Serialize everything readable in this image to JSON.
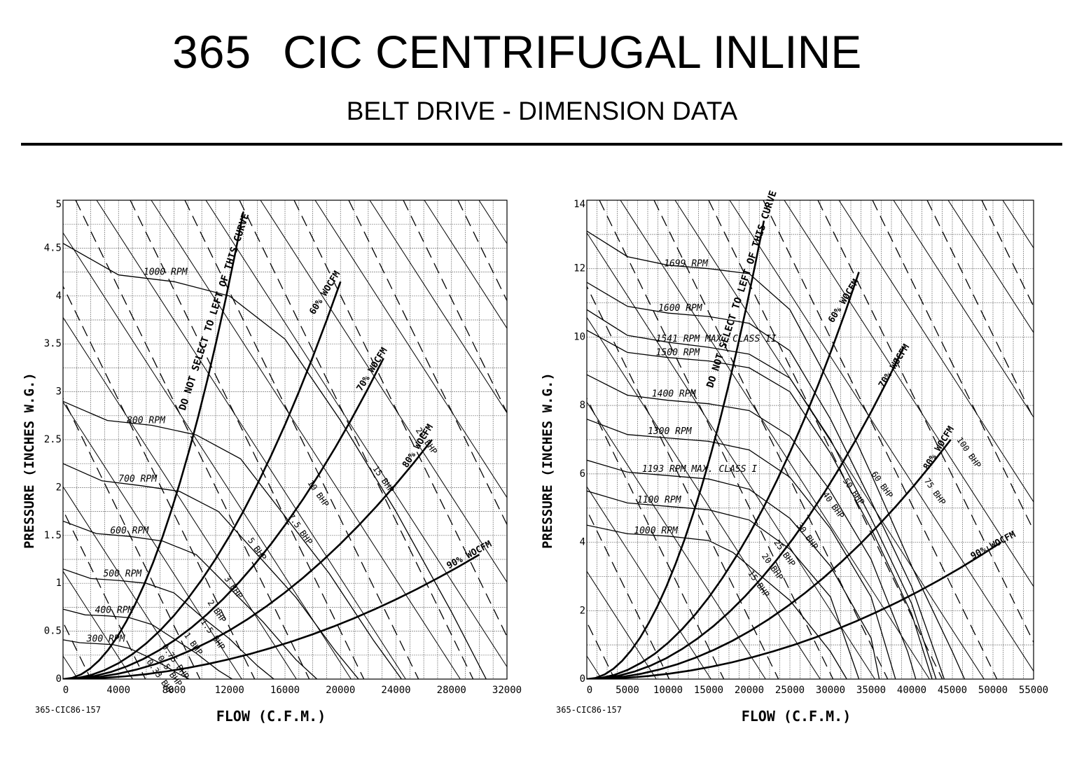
{
  "header": {
    "model": "365",
    "title": "CIC CENTRIFUGAL INLINE",
    "subtitle": "BELT DRIVE - DIMENSION DATA"
  },
  "chart_data": [
    {
      "type": "line",
      "drawing_code": "365-CIC86-157",
      "xlabel": "FLOW (C.F.M.)",
      "ylabel": "PRESSURE (INCHES W.G.)",
      "xlim": [
        0,
        32000
      ],
      "ylim": [
        0,
        5
      ],
      "x_ticks": [
        0,
        4000,
        8000,
        12000,
        16000,
        20000,
        24000,
        28000,
        32000
      ],
      "x_tick_labels": [
        "0",
        "4000",
        "8000",
        "12000",
        "16000",
        "20000",
        "24000",
        "28000",
        "32000"
      ],
      "y_ticks": [
        0,
        0.5,
        1,
        1.5,
        2,
        2.5,
        3,
        3.5,
        4,
        4.5,
        5
      ],
      "y_tick_labels": [
        "0",
        "0.5",
        "1",
        "1.5",
        "2",
        "2.5",
        "3",
        "3.5",
        "4",
        "4.5",
        "5"
      ],
      "grid": true,
      "rpm_curves": [
        {
          "label": "1000 RPM",
          "label_at": [
            5800,
            4.2
          ],
          "points": [
            [
              0,
              4.55
            ],
            [
              4000,
              4.22
            ],
            [
              8000,
              4.15
            ],
            [
              12000,
              4.0
            ],
            [
              16000,
              3.55
            ],
            [
              20000,
              2.7
            ],
            [
              24000,
              1.75
            ],
            [
              28000,
              0.7
            ],
            [
              30500,
              0
            ]
          ]
        },
        {
          "label": "800 RPM",
          "label_at": [
            4600,
            2.65
          ],
          "points": [
            [
              0,
              2.9
            ],
            [
              3200,
              2.7
            ],
            [
              6400,
              2.65
            ],
            [
              9600,
              2.55
            ],
            [
              12800,
              2.3
            ],
            [
              16000,
              1.7
            ],
            [
              19200,
              1.1
            ],
            [
              22400,
              0.4
            ],
            [
              24400,
              0
            ]
          ]
        },
        {
          "label": "700 RPM",
          "label_at": [
            4000,
            2.04
          ],
          "points": [
            [
              0,
              2.25
            ],
            [
              2800,
              2.07
            ],
            [
              5600,
              2.02
            ],
            [
              8400,
              1.96
            ],
            [
              11200,
              1.75
            ],
            [
              14000,
              1.3
            ],
            [
              16800,
              0.85
            ],
            [
              19600,
              0.3
            ],
            [
              21300,
              0
            ]
          ]
        },
        {
          "label": "600 RPM",
          "label_at": [
            3400,
            1.5
          ],
          "points": [
            [
              0,
              1.65
            ],
            [
              2400,
              1.52
            ],
            [
              4800,
              1.49
            ],
            [
              7200,
              1.44
            ],
            [
              9600,
              1.3
            ],
            [
              12000,
              0.95
            ],
            [
              14400,
              0.6
            ],
            [
              16800,
              0.2
            ],
            [
              18300,
              0
            ]
          ]
        },
        {
          "label": "500 RPM",
          "label_at": [
            2900,
            1.05
          ],
          "points": [
            [
              0,
              1.15
            ],
            [
              2000,
              1.05
            ],
            [
              4000,
              1.03
            ],
            [
              6000,
              1.0
            ],
            [
              8000,
              0.9
            ],
            [
              10000,
              0.65
            ],
            [
              12000,
              0.42
            ],
            [
              14000,
              0.14
            ],
            [
              15200,
              0
            ]
          ]
        },
        {
          "label": "400 RPM",
          "label_at": [
            2300,
            0.67
          ],
          "points": [
            [
              0,
              0.73
            ],
            [
              1600,
              0.67
            ],
            [
              3200,
              0.66
            ],
            [
              4800,
              0.64
            ],
            [
              6400,
              0.57
            ],
            [
              8000,
              0.42
            ],
            [
              9600,
              0.27
            ],
            [
              11200,
              0.09
            ],
            [
              12200,
              0
            ]
          ]
        },
        {
          "label": "300 RPM",
          "label_at": [
            1700,
            0.37
          ],
          "points": [
            [
              0,
              0.41
            ],
            [
              1200,
              0.38
            ],
            [
              2400,
              0.37
            ],
            [
              3600,
              0.36
            ],
            [
              4800,
              0.32
            ],
            [
              6000,
              0.24
            ],
            [
              7200,
              0.15
            ],
            [
              8400,
              0.05
            ],
            [
              9100,
              0
            ]
          ]
        }
      ],
      "bhp_curves": [
        {
          "label": "20 BHP",
          "label_at": [
            25400,
            2.6
          ]
        },
        {
          "label": "15 BHP",
          "label_at": [
            22300,
            2.2
          ]
        },
        {
          "label": "10 BHP",
          "label_at": [
            17600,
            2.05
          ]
        },
        {
          "label": "7.5 BHP",
          "label_at": [
            16200,
            1.7
          ]
        },
        {
          "label": "5 BHP",
          "label_at": [
            13300,
            1.45
          ]
        },
        {
          "label": "3 BHP",
          "label_at": [
            11600,
            1.05
          ]
        },
        {
          "label": "2 BHP",
          "label_at": [
            10400,
            0.8
          ]
        },
        {
          "label": "1.5 BHP",
          "label_at": [
            9900,
            0.6
          ]
        },
        {
          "label": "1 BHP",
          "label_at": [
            8700,
            0.46
          ]
        },
        {
          "label": "0.75 BHP",
          "label_at": [
            7100,
            0.34
          ]
        },
        {
          "label": "0.5 BHP",
          "label_at": [
            6800,
            0.22
          ]
        },
        {
          "label": "0.33 BHP",
          "label_at": [
            6000,
            0.18
          ]
        }
      ],
      "system_curves": [
        {
          "label": "DO NOT SELECT TO LEFT OF THIS CURVE",
          "end": [
            13000,
            4.88
          ],
          "label_at": [
            8800,
            2.8
          ]
        },
        {
          "label": "60% WOCFM",
          "end": [
            20000,
            4.15
          ],
          "label_at": [
            18100,
            3.8
          ]
        },
        {
          "label": "70% WOCFM",
          "end": [
            23100,
            3.35
          ],
          "label_at": [
            21500,
            3.0
          ]
        },
        {
          "label": "80% WOCFM",
          "end": [
            26600,
            2.5
          ],
          "label_at": [
            24800,
            2.2
          ]
        },
        {
          "label": "90% WOCFM",
          "end": [
            30000,
            1.3
          ],
          "label_at": [
            27800,
            1.15
          ]
        }
      ]
    },
    {
      "type": "line",
      "drawing_code": "365-CIC86-157",
      "xlabel": "FLOW (C.F.M.)",
      "ylabel": "PRESSURE (INCHES W.G.)",
      "xlim": [
        0,
        55000
      ],
      "ylim": [
        0,
        14
      ],
      "x_ticks": [
        0,
        5000,
        10000,
        15000,
        20000,
        25000,
        30000,
        35000,
        40000,
        45000,
        50000,
        55000
      ],
      "x_tick_labels": [
        "0",
        "5000",
        "10000",
        "15000",
        "20000",
        "25000",
        "30000",
        "35000",
        "40000",
        "45000",
        "50000",
        "55000"
      ],
      "y_ticks": [
        0,
        2,
        4,
        6,
        8,
        10,
        12,
        14
      ],
      "y_tick_labels": [
        "0",
        "2",
        "4",
        "6",
        "8",
        "10",
        "12",
        "14"
      ],
      "grid": true,
      "rpm_curves": [
        {
          "label": "1699 RPM",
          "label_at": [
            9500,
            12.0
          ],
          "points": [
            [
              0,
              13.1
            ],
            [
              5000,
              12.35
            ],
            [
              10000,
              12.1
            ],
            [
              15000,
              12.0
            ],
            [
              20000,
              11.85
            ],
            [
              25000,
              10.8
            ],
            [
              30000,
              8.6
            ],
            [
              35000,
              6.0
            ],
            [
              40000,
              3.3
            ],
            [
              45000,
              0.8
            ],
            [
              46500,
              0
            ]
          ]
        },
        {
          "label": "1600 RPM",
          "label_at": [
            8800,
            10.7
          ],
          "points": [
            [
              0,
              11.6
            ],
            [
              5000,
              10.9
            ],
            [
              10000,
              10.7
            ],
            [
              15000,
              10.6
            ],
            [
              20000,
              10.4
            ],
            [
              25000,
              9.6
            ],
            [
              30000,
              7.6
            ],
            [
              35000,
              5.2
            ],
            [
              40000,
              2.7
            ],
            [
              44000,
              0
            ]
          ]
        },
        {
          "label": "1541 RPM MAX. CLASS II",
          "label_at": [
            8500,
            9.8
          ],
          "points": [
            [
              0,
              10.8
            ],
            [
              5000,
              10.05
            ],
            [
              10000,
              9.85
            ],
            [
              15000,
              9.7
            ],
            [
              20000,
              9.5
            ],
            [
              25000,
              8.8
            ],
            [
              30000,
              7.0
            ],
            [
              35000,
              4.7
            ],
            [
              40000,
              2.2
            ],
            [
              43000,
              0
            ]
          ]
        },
        {
          "label": "1500 RPM",
          "label_at": [
            8500,
            9.4
          ],
          "points": [
            [
              0,
              10.2
            ],
            [
              5000,
              9.55
            ],
            [
              10000,
              9.4
            ],
            [
              15000,
              9.3
            ],
            [
              20000,
              9.1
            ],
            [
              25000,
              8.4
            ],
            [
              30000,
              6.6
            ],
            [
              35000,
              4.4
            ],
            [
              40000,
              1.9
            ],
            [
              42500,
              0
            ]
          ]
        },
        {
          "label": "1400 RPM",
          "label_at": [
            8000,
            8.2
          ],
          "points": [
            [
              0,
              8.9
            ],
            [
              5000,
              8.3
            ],
            [
              10000,
              8.15
            ],
            [
              15000,
              8.05
            ],
            [
              20000,
              7.85
            ],
            [
              25000,
              7.1
            ],
            [
              30000,
              5.5
            ],
            [
              35000,
              3.5
            ],
            [
              39500,
              0.8
            ],
            [
              40500,
              0
            ]
          ]
        },
        {
          "label": "1300 RPM",
          "label_at": [
            7500,
            7.1
          ],
          "points": [
            [
              0,
              7.6
            ],
            [
              5000,
              7.15
            ],
            [
              10000,
              7.05
            ],
            [
              15000,
              6.95
            ],
            [
              20000,
              6.7
            ],
            [
              25000,
              5.9
            ],
            [
              30000,
              4.4
            ],
            [
              35000,
              2.4
            ],
            [
              38000,
              0
            ]
          ]
        },
        {
          "label": "1193 RPM MAX. CLASS I",
          "label_at": [
            6800,
            6.0
          ],
          "points": [
            [
              0,
              6.4
            ],
            [
              5000,
              6.05
            ],
            [
              10000,
              5.95
            ],
            [
              15000,
              5.85
            ],
            [
              20000,
              5.55
            ],
            [
              25000,
              4.7
            ],
            [
              30000,
              3.3
            ],
            [
              35000,
              1.2
            ],
            [
              36000,
              0
            ]
          ]
        },
        {
          "label": "1100 RPM",
          "label_at": [
            6200,
            5.1
          ],
          "points": [
            [
              0,
              5.5
            ],
            [
              5000,
              5.15
            ],
            [
              10000,
              5.05
            ],
            [
              15000,
              4.95
            ],
            [
              20000,
              4.65
            ],
            [
              25000,
              3.8
            ],
            [
              30000,
              2.4
            ],
            [
              33500,
              0
            ]
          ]
        },
        {
          "label": "1000 RPM",
          "label_at": [
            5800,
            4.2
          ],
          "points": [
            [
              0,
              4.5
            ],
            [
              5000,
              4.25
            ],
            [
              10000,
              4.18
            ],
            [
              15000,
              4.05
            ],
            [
              18000,
              3.7
            ],
            [
              21000,
              3.1
            ],
            [
              25000,
              2.3
            ],
            [
              30000,
              0.8
            ],
            [
              32000,
              0
            ]
          ]
        }
      ],
      "bhp_curves": [
        {
          "label": "100 BHP",
          "label_at": [
            45500,
            7.0
          ]
        },
        {
          "label": "75 BHP",
          "label_at": [
            41500,
            5.8
          ]
        },
        {
          "label": "60 BHP",
          "label_at": [
            35000,
            6.0
          ]
        },
        {
          "label": "50 BHP",
          "label_at": [
            31500,
            5.8
          ]
        },
        {
          "label": "40 BHP",
          "label_at": [
            29000,
            5.4
          ]
        },
        {
          "label": "30 BHP",
          "label_at": [
            25800,
            4.5
          ]
        },
        {
          "label": "25 BHP",
          "label_at": [
            23000,
            4.0
          ]
        },
        {
          "label": "20 BHP",
          "label_at": [
            21500,
            3.6
          ]
        },
        {
          "label": "15 BHP",
          "label_at": [
            19800,
            3.1
          ]
        }
      ],
      "system_curves": [
        {
          "label": "DO NOT SELECT TO LEFT OF THIS CURVE",
          "end": [
            21800,
            13.4
          ],
          "label_at": [
            15500,
            8.5
          ]
        },
        {
          "label": "60% WOCFM",
          "end": [
            33500,
            11.9
          ],
          "label_at": [
            30300,
            10.4
          ]
        },
        {
          "label": "70% WOCFM",
          "end": [
            39000,
            9.7
          ],
          "label_at": [
            36500,
            8.5
          ]
        },
        {
          "label": "80% WOCFM",
          "end": [
            44800,
            7.0
          ],
          "label_at": [
            42000,
            6.1
          ]
        },
        {
          "label": "90% WOCFM",
          "end": [
            51000,
            4.0
          ],
          "label_at": [
            47500,
            3.5
          ]
        }
      ]
    }
  ]
}
